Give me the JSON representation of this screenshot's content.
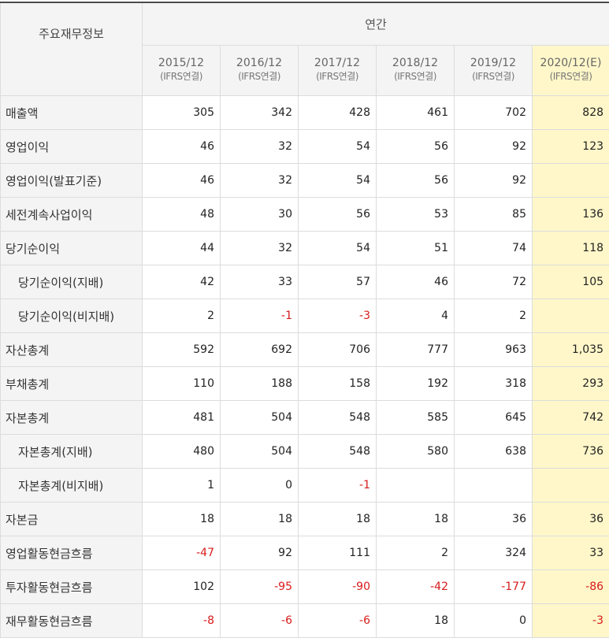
{
  "header": {
    "corner_label": "주요재무정보",
    "annual_label": "연간",
    "periods": [
      {
        "label": "2015/12",
        "sub": "(IFRS연결)",
        "estimate": false
      },
      {
        "label": "2016/12",
        "sub": "(IFRS연결)",
        "estimate": false
      },
      {
        "label": "2017/12",
        "sub": "(IFRS연결)",
        "estimate": false
      },
      {
        "label": "2018/12",
        "sub": "(IFRS연결)",
        "estimate": false
      },
      {
        "label": "2019/12",
        "sub": "(IFRS연결)",
        "estimate": false
      },
      {
        "label": "2020/12(E)",
        "sub": "(IFRS연결)",
        "estimate": true
      }
    ]
  },
  "colors": {
    "negative": "#d81b1b",
    "estimate_bg": "#fff7c9",
    "header_bg": "#f4f4f4"
  },
  "rows": [
    {
      "label": "매출액",
      "indent": false,
      "values": [
        "305",
        "342",
        "428",
        "461",
        "702",
        "828"
      ]
    },
    {
      "label": "영업이익",
      "indent": false,
      "values": [
        "46",
        "32",
        "54",
        "56",
        "92",
        "123"
      ]
    },
    {
      "label": "영업이익(발표기준)",
      "indent": false,
      "values": [
        "46",
        "32",
        "54",
        "56",
        "92",
        ""
      ]
    },
    {
      "label": "세전계속사업이익",
      "indent": false,
      "values": [
        "48",
        "30",
        "56",
        "53",
        "85",
        "136"
      ]
    },
    {
      "label": "당기순이익",
      "indent": false,
      "values": [
        "44",
        "32",
        "54",
        "51",
        "74",
        "118"
      ]
    },
    {
      "label": "당기순이익(지배)",
      "indent": true,
      "values": [
        "42",
        "33",
        "57",
        "46",
        "72",
        "105"
      ]
    },
    {
      "label": "당기순이익(비지배)",
      "indent": true,
      "values": [
        "2",
        "-1",
        "-3",
        "4",
        "2",
        ""
      ]
    },
    {
      "label": "자산총계",
      "indent": false,
      "values": [
        "592",
        "692",
        "706",
        "777",
        "963",
        "1,035"
      ]
    },
    {
      "label": "부채총계",
      "indent": false,
      "values": [
        "110",
        "188",
        "158",
        "192",
        "318",
        "293"
      ]
    },
    {
      "label": "자본총계",
      "indent": false,
      "values": [
        "481",
        "504",
        "548",
        "585",
        "645",
        "742"
      ]
    },
    {
      "label": "자본총계(지배)",
      "indent": true,
      "values": [
        "480",
        "504",
        "548",
        "580",
        "638",
        "736"
      ]
    },
    {
      "label": "자본총계(비지배)",
      "indent": true,
      "values": [
        "1",
        "0",
        "-1",
        "",
        "",
        ""
      ]
    },
    {
      "label": "자본금",
      "indent": false,
      "values": [
        "18",
        "18",
        "18",
        "18",
        "36",
        "36"
      ]
    },
    {
      "label": "영업활동현금흐름",
      "indent": false,
      "values": [
        "-47",
        "92",
        "111",
        "2",
        "324",
        "33"
      ]
    },
    {
      "label": "투자활동현금흐름",
      "indent": false,
      "values": [
        "102",
        "-95",
        "-90",
        "-42",
        "-177",
        "-86"
      ]
    },
    {
      "label": "재무활동현금흐름",
      "indent": false,
      "values": [
        "-8",
        "-6",
        "-6",
        "18",
        "0",
        "-3"
      ]
    }
  ]
}
